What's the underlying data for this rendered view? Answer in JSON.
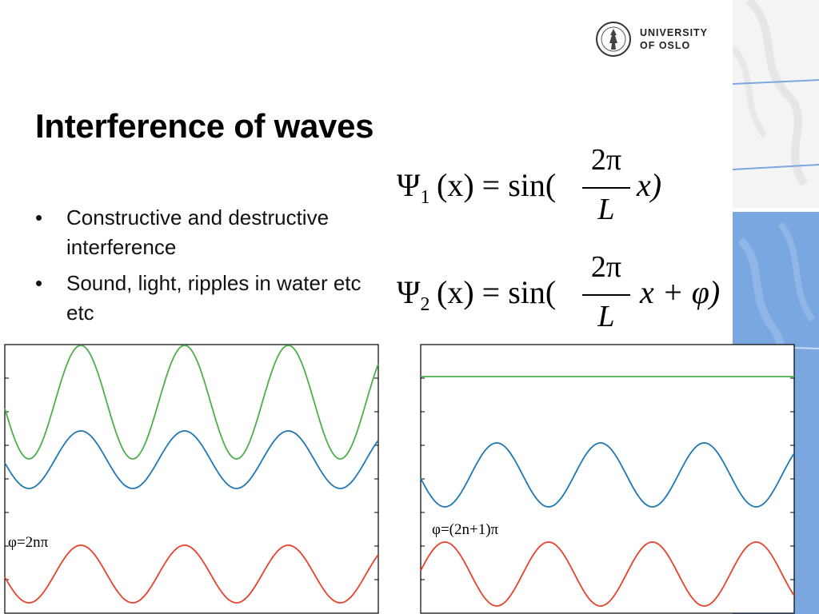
{
  "slide": {
    "title": "Interference of waves",
    "bullets": [
      "Constructive and destructive interference",
      "Sound, light, ripples in water etc etc"
    ],
    "bullet_symbol": "•"
  },
  "logo": {
    "line1": "UNIVERSITY",
    "line2": "OF OSLO"
  },
  "equations": {
    "eq1": {
      "lhs": "Ψ",
      "sub": "1",
      "arg": "(x) = sin(",
      "num": "2π",
      "den": "L",
      "tail": "x)"
    },
    "eq2": {
      "lhs": "Ψ",
      "sub": "2",
      "arg": "(x) = sin(",
      "num": "2π",
      "den": "L",
      "tail": "x + φ)"
    }
  },
  "colors": {
    "sum": "#4daf4a",
    "psi1": "#1f77b4",
    "psi2": "#e8412c",
    "side_blue": "#7aa7e0"
  },
  "chart_data": [
    {
      "type": "line",
      "label": "φ=2nπ",
      "x_periods": 3.6,
      "series": [
        {
          "name": "",
          "function": "2·sin(2πx/L)",
          "color": "#4daf4a",
          "amplitude": 2
        },
        {
          "name": "",
          "function": "sin(2πx/L)",
          "color": "#1f77b4",
          "amplitude": 1
        },
        {
          "name": "",
          "function": "sin(2πx/L + 2nπ)",
          "color": "#e8412c",
          "amplitude": 1
        }
      ]
    },
    {
      "type": "line",
      "label": "φ=(2n+1)π",
      "x_periods": 3.6,
      "series": [
        {
          "name": "",
          "function": "0",
          "color": "#4daf4a",
          "amplitude": 0
        },
        {
          "name": "",
          "function": "sin(2πx/L)",
          "color": "#1f77b4",
          "amplitude": 1
        },
        {
          "name": "",
          "function": "sin(2πx/L + (2n+1)π)",
          "color": "#e8412c",
          "amplitude": 1
        }
      ]
    }
  ]
}
